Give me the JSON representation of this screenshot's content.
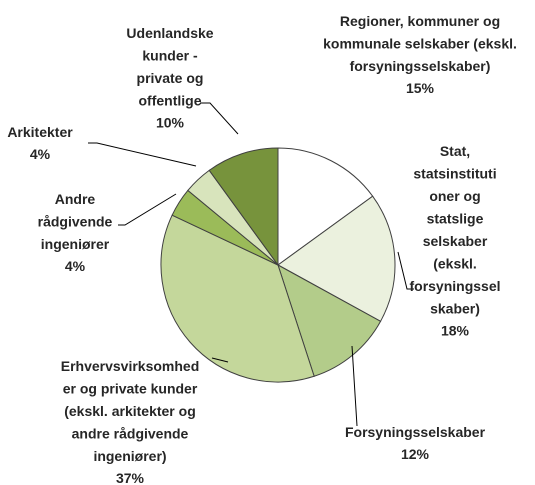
{
  "chart_data": {
    "type": "pie",
    "categories": [
      "Regioner, kommuner og\nkommunale selskaber (ekskl.\nforsyningsselskaber)",
      "Stat,\nstatsinstituti\noner og\nstatslige\nselskaber\n(ekskl.\nforsyningssel\nskaber)",
      "Forsyningsselskaber",
      "Erhvervsvirksomhed\ner og private kunder\n(ekskl. arkitekter og\nandre rådgivende\ningeniører)",
      "Andre\nrådgivende\ningeniører",
      "Arkitekter",
      "Udenlandske\nkunder -\nprivate og\noffentlige"
    ],
    "values": [
      15,
      18,
      12,
      37,
      4,
      4,
      10
    ],
    "value_labels": [
      "15%",
      "18%",
      "12%",
      "37%",
      "4%",
      "4%",
      "10%"
    ],
    "colors": [
      "#ffffff",
      "#ebf1de",
      "#b3cc8a",
      "#c4d79b",
      "#9bbb59",
      "#d8e4bc",
      "#77933c"
    ]
  }
}
